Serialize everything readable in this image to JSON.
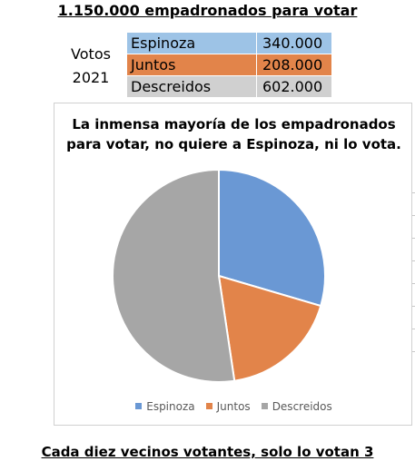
{
  "header": {
    "title": "1.150.000 empadronados para votar"
  },
  "votos_label": {
    "line1": "Votos",
    "line2": "2021"
  },
  "table": {
    "rows": [
      {
        "name": "Espinoza",
        "value": "340.000"
      },
      {
        "name": "Juntos",
        "value": "208.000"
      },
      {
        "name": "Descreidos",
        "value": "602.000"
      }
    ]
  },
  "chart_data": {
    "type": "pie",
    "title_line1": "La inmensa mayoría de los empadronados",
    "title_line2": "para votar, no quiere a Espinoza, ni lo vota.",
    "categories": [
      "Espinoza",
      "Juntos",
      "Descreidos"
    ],
    "values": [
      340000,
      208000,
      602000
    ],
    "colors": [
      "#6a98d4",
      "#e2844a",
      "#a6a6a6"
    ],
    "legend": "bottom"
  },
  "footer": {
    "caption": "Cada diez vecinos votantes, solo lo votan 3"
  }
}
